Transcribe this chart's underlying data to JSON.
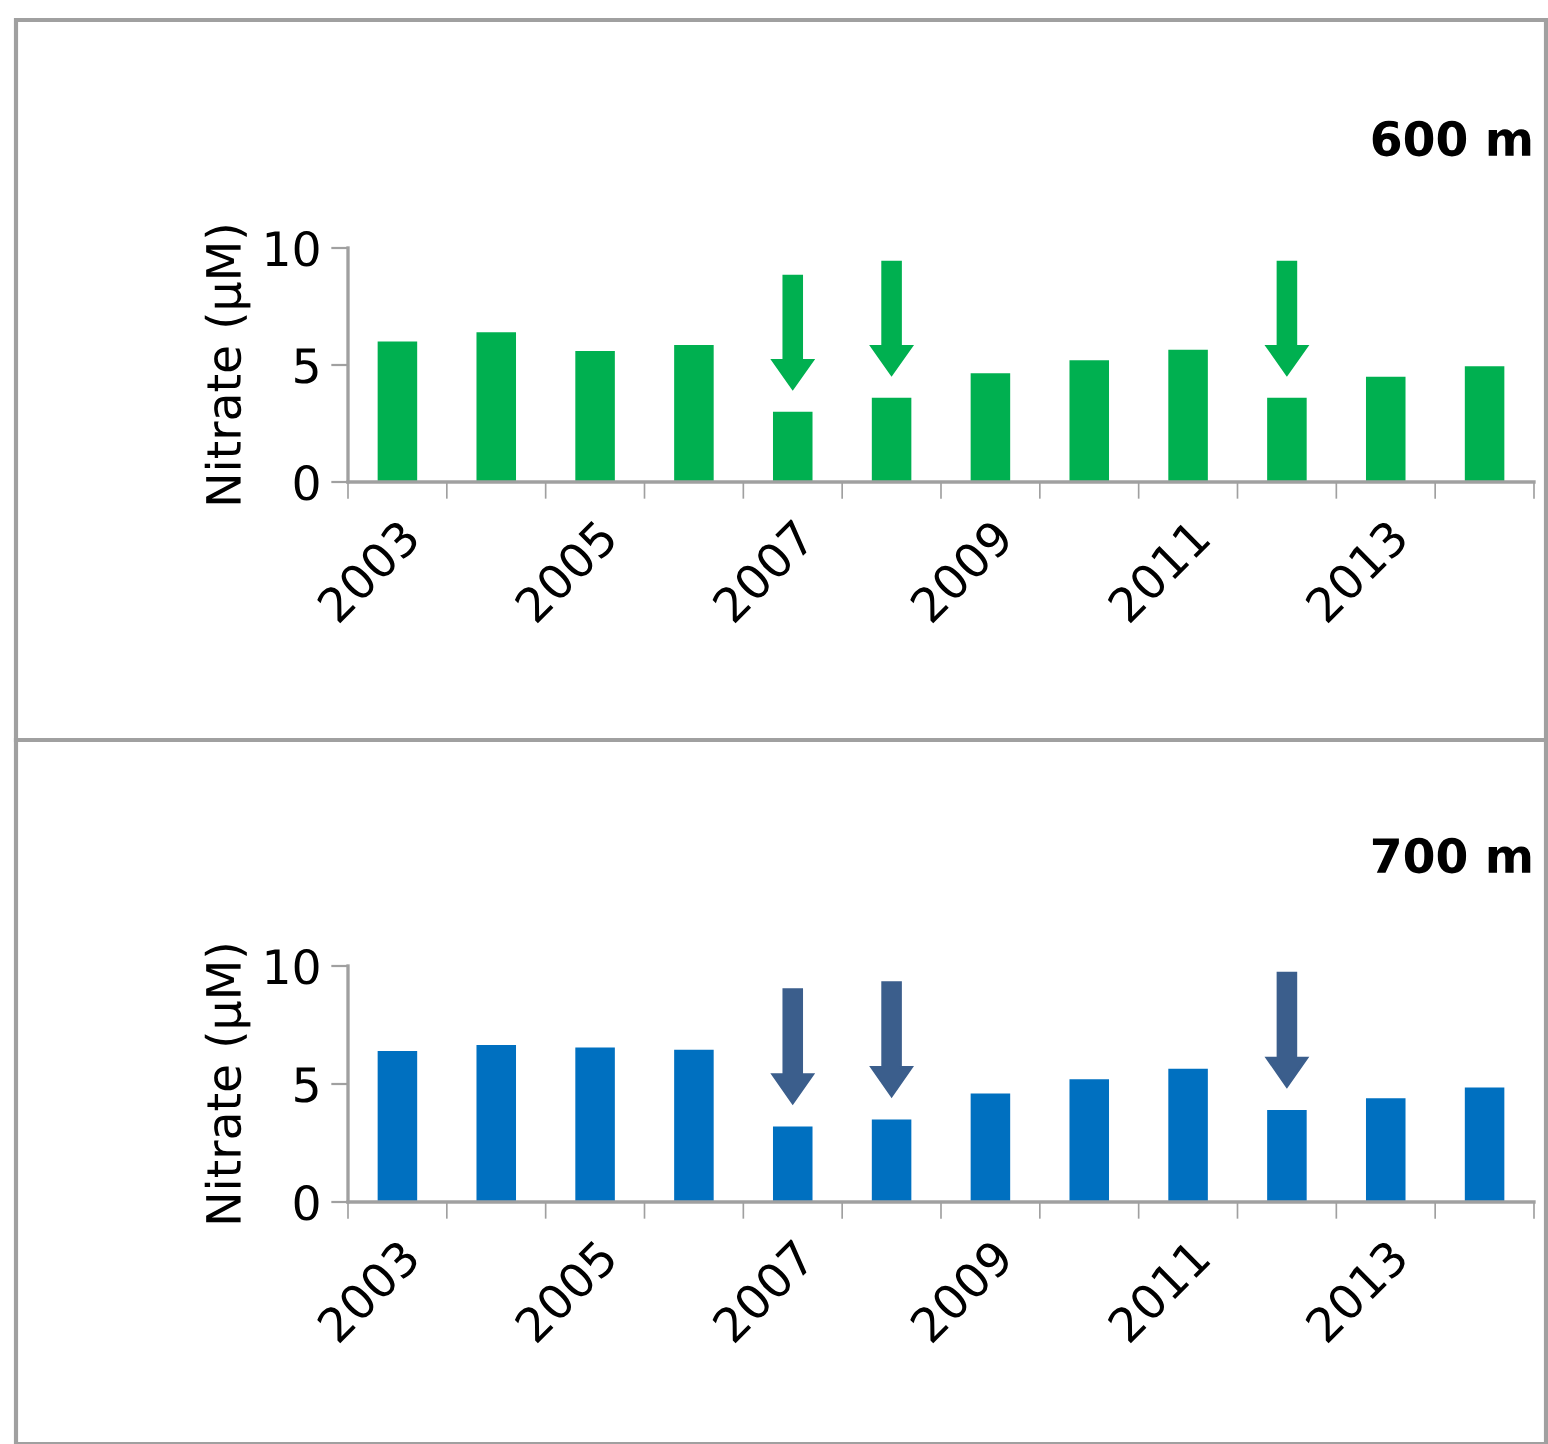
{
  "chart_data": [
    {
      "type": "bar",
      "title": "600 m",
      "ylabel": "Nitrate (µM)",
      "categories": [
        "2003",
        null,
        "2005",
        null,
        "2007",
        null,
        "2009",
        null,
        "2011",
        null,
        "2013",
        null
      ],
      "series": [
        {
          "color": "#00b050",
          "values": [
            6.0,
            6.4,
            5.6,
            5.85,
            3.0,
            3.6,
            4.65,
            5.2,
            5.65,
            3.6,
            4.5,
            4.95
          ]
        }
      ],
      "ylim": [
        0,
        10
      ],
      "yticks": [
        0,
        5,
        10
      ],
      "grid": false,
      "legend": false
    },
    {
      "type": "bar",
      "title": "700 m",
      "ylabel": "Nitrate (µM)",
      "categories": [
        "2003",
        null,
        "2005",
        null,
        "2007",
        null,
        "2009",
        null,
        "2011",
        null,
        "2013",
        null
      ],
      "series": [
        {
          "color": "#0070c0",
          "values": [
            6.4,
            6.65,
            6.55,
            6.45,
            3.2,
            3.5,
            4.6,
            5.2,
            5.65,
            3.9,
            4.4,
            4.85
          ]
        }
      ],
      "ylim": [
        0,
        10
      ],
      "yticks": [
        0,
        5,
        10
      ],
      "grid": false,
      "legend": false
    }
  ]
}
